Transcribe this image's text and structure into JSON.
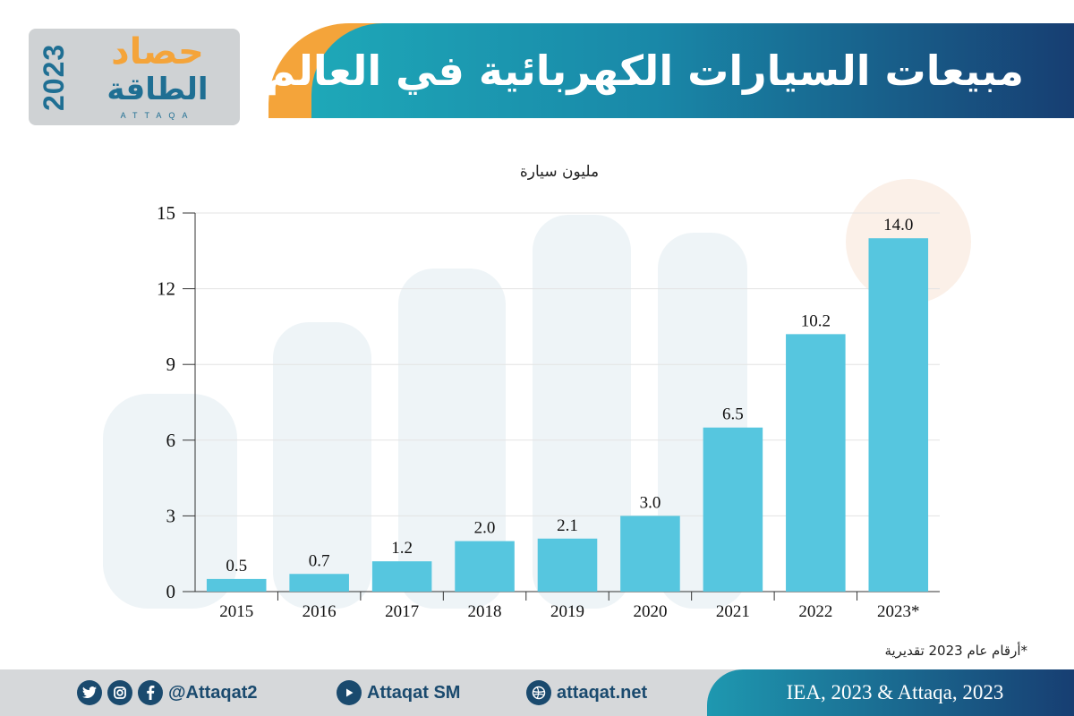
{
  "header": {
    "title": "مبيعات السيارات الكهربائية في العالم"
  },
  "logo": {
    "year": "2023",
    "line1": "حصاد",
    "line2": "الطاقة",
    "latin": "ATTAQA"
  },
  "colors": {
    "bar": "#56c6df",
    "header_orange": "#f4a43a",
    "header_teal": "#1ea8b8",
    "header_navy": "#173e72",
    "footer_text": "#1a4a6e"
  },
  "chart_data": {
    "type": "bar",
    "unit_label": "مليون سيارة",
    "categories": [
      "2015",
      "2016",
      "2017",
      "2018",
      "2019",
      "2020",
      "2021",
      "2022",
      "2023*"
    ],
    "values": [
      0.5,
      0.7,
      1.2,
      2.0,
      2.1,
      3.0,
      6.5,
      10.2,
      14.0
    ],
    "value_labels": [
      "0.5",
      "0.7",
      "1.2",
      "2.0",
      "2.1",
      "3.0",
      "6.5",
      "10.2",
      "14.0"
    ],
    "ylim": [
      0,
      15
    ],
    "yticks": [
      0,
      3,
      6,
      9,
      12,
      15
    ],
    "ytick_labels": [
      "0",
      "3",
      "6",
      "9",
      "12",
      "15"
    ],
    "grid": true,
    "legend": "none"
  },
  "footnote": "*أرقام عام 2023 تقديرية",
  "footer": {
    "social_handle": "@Attaqat2",
    "youtube": "Attaqat SM",
    "website": "attaqat.net",
    "source": "IEA, 2023 & Attaqa, 2023",
    "icons": [
      "twitter-icon",
      "instagram-icon",
      "facebook-icon",
      "youtube-icon",
      "web-icon"
    ]
  }
}
